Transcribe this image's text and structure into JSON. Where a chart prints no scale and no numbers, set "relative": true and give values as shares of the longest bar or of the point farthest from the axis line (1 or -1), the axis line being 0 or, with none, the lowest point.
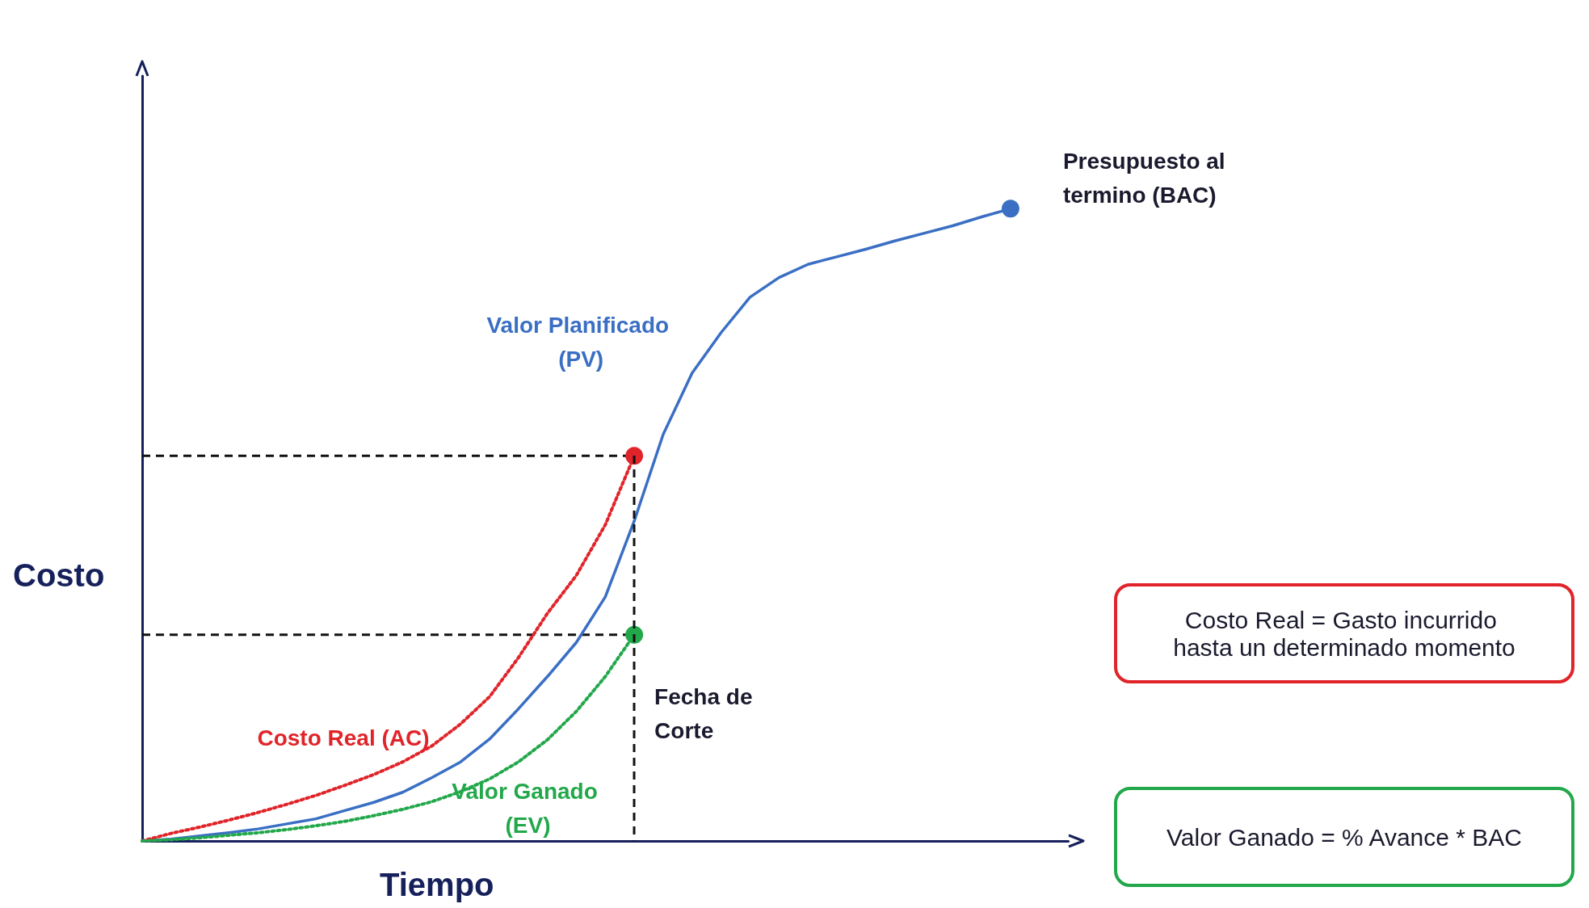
{
  "chart_data": {
    "type": "line",
    "relative": true,
    "xlabel": "Tiempo",
    "ylabel": "Costo",
    "categories": [
      null,
      null,
      null,
      null,
      null,
      null,
      null,
      null,
      null,
      null,
      null,
      null,
      null,
      null,
      null,
      null,
      null,
      null,
      null,
      null,
      null,
      null,
      null,
      null,
      null,
      null,
      null,
      null,
      null,
      null,
      null,
      null,
      null
    ],
    "grid": false,
    "legend": false,
    "series": [
      {
        "name": "Valor Planificado (PV)",
        "color": "#3a6fc4",
        "line_style": "solid",
        "values": [
          0,
          0.003,
          0.008,
          0.013,
          0.019,
          0.027,
          0.035,
          0.048,
          0.061,
          0.077,
          0.1,
          0.125,
          0.161,
          0.209,
          0.26,
          0.314,
          0.386,
          0.506,
          0.643,
          0.74,
          0.804,
          0.86,
          0.891,
          0.912,
          0.924,
          0.936,
          0.949,
          0.961,
          0.973,
          0.987,
          1,
          null,
          null
        ]
      },
      {
        "name": "Costo Real (AC)",
        "color": "#e0242a",
        "line_style": "dotted",
        "values": [
          0,
          0.012,
          0.022,
          0.033,
          0.045,
          0.058,
          0.072,
          0.088,
          0.105,
          0.125,
          0.15,
          0.185,
          0.228,
          0.29,
          0.36,
          0.42,
          0.5,
          0.609,
          null,
          null,
          null,
          null,
          null,
          null,
          null,
          null,
          null,
          null,
          null,
          null,
          null,
          null,
          null
        ]
      },
      {
        "name": "Valor Ganado (EV)",
        "color": "#22a84a",
        "line_style": "dotted",
        "values": [
          0,
          0.002,
          0.005,
          0.009,
          0.013,
          0.018,
          0.024,
          0.031,
          0.04,
          0.05,
          0.062,
          0.078,
          0.098,
          0.125,
          0.16,
          0.205,
          0.26,
          0.326,
          null,
          null,
          null,
          null,
          null,
          null,
          null,
          null,
          null,
          null,
          null,
          null,
          null,
          null,
          null
        ]
      }
    ],
    "ref_lines": [
      {
        "axis": "y",
        "value": 0.609,
        "line_style": "dashed",
        "color": "#111111"
      },
      {
        "axis": "y",
        "value": 0.326,
        "line_style": "dashed",
        "color": "#111111"
      }
    ],
    "annotations": [
      "Presupuesto al termino (BAC)",
      "Fecha de Corte",
      "Costo Real = Gasto incurrido hasta un determinado momento",
      "Valor Ganado = % Avance * BAC"
    ]
  }
}
